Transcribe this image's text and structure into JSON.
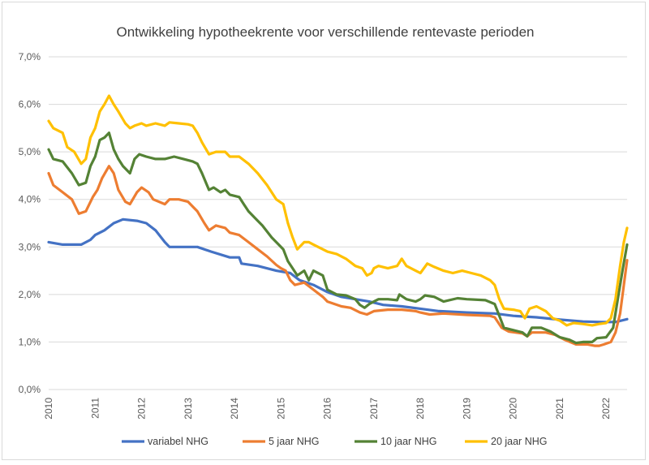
{
  "chart_data": {
    "type": "line",
    "title": "Ontwikkeling hypotheekrente voor verschillende rentevaste perioden",
    "xlabel": "",
    "ylabel": "",
    "x_range": [
      2010,
      2022.45
    ],
    "ylim": [
      0,
      7
    ],
    "y_ticks": [
      "0,0%",
      "1,0%",
      "2,0%",
      "3,0%",
      "4,0%",
      "5,0%",
      "6,0%",
      "7,0%"
    ],
    "y_tick_values": [
      0,
      1,
      2,
      3,
      4,
      5,
      6,
      7
    ],
    "x_ticks": [
      "2010",
      "2011",
      "2012",
      "2013",
      "2014",
      "2015",
      "2016",
      "2017",
      "2018",
      "2019",
      "2020",
      "2021",
      "2022"
    ],
    "x_tick_values": [
      2010,
      2011,
      2012,
      2013,
      2014,
      2015,
      2016,
      2017,
      2018,
      2019,
      2020,
      2021,
      2022
    ],
    "gridlines": "horizontal",
    "legend_position": "bottom",
    "series": [
      {
        "name": "variabel NHG",
        "color": "#4472C4",
        "points": [
          [
            2010.0,
            3.1
          ],
          [
            2010.3,
            3.05
          ],
          [
            2010.7,
            3.05
          ],
          [
            2010.9,
            3.15
          ],
          [
            2011.0,
            3.25
          ],
          [
            2011.2,
            3.35
          ],
          [
            2011.4,
            3.5
          ],
          [
            2011.6,
            3.58
          ],
          [
            2011.9,
            3.55
          ],
          [
            2012.1,
            3.5
          ],
          [
            2012.3,
            3.35
          ],
          [
            2012.5,
            3.1
          ],
          [
            2012.6,
            3.0
          ],
          [
            2012.9,
            3.0
          ],
          [
            2013.2,
            3.0
          ],
          [
            2013.5,
            2.9
          ],
          [
            2013.9,
            2.78
          ],
          [
            2014.1,
            2.78
          ],
          [
            2014.15,
            2.65
          ],
          [
            2014.5,
            2.6
          ],
          [
            2014.9,
            2.5
          ],
          [
            2015.2,
            2.45
          ],
          [
            2015.4,
            2.3
          ],
          [
            2015.7,
            2.2
          ],
          [
            2016.0,
            2.05
          ],
          [
            2016.3,
            1.95
          ],
          [
            2016.6,
            1.9
          ],
          [
            2016.9,
            1.85
          ],
          [
            2017.2,
            1.78
          ],
          [
            2017.6,
            1.75
          ],
          [
            2018.0,
            1.7
          ],
          [
            2018.4,
            1.65
          ],
          [
            2019.0,
            1.62
          ],
          [
            2019.6,
            1.6
          ],
          [
            2020.0,
            1.55
          ],
          [
            2020.5,
            1.52
          ],
          [
            2021.0,
            1.47
          ],
          [
            2021.5,
            1.43
          ],
          [
            2021.9,
            1.42
          ],
          [
            2022.2,
            1.42
          ],
          [
            2022.45,
            1.48
          ]
        ]
      },
      {
        "name": "5 jaar NHG",
        "color": "#ED7D31",
        "points": [
          [
            2010.0,
            4.55
          ],
          [
            2010.1,
            4.3
          ],
          [
            2010.3,
            4.15
          ],
          [
            2010.5,
            4.0
          ],
          [
            2010.65,
            3.7
          ],
          [
            2010.8,
            3.75
          ],
          [
            2010.95,
            4.05
          ],
          [
            2011.05,
            4.2
          ],
          [
            2011.15,
            4.45
          ],
          [
            2011.3,
            4.7
          ],
          [
            2011.4,
            4.55
          ],
          [
            2011.5,
            4.2
          ],
          [
            2011.65,
            3.95
          ],
          [
            2011.75,
            3.9
          ],
          [
            2011.9,
            4.15
          ],
          [
            2012.0,
            4.25
          ],
          [
            2012.15,
            4.15
          ],
          [
            2012.25,
            4.0
          ],
          [
            2012.5,
            3.9
          ],
          [
            2012.6,
            4.0
          ],
          [
            2012.8,
            4.0
          ],
          [
            2013.0,
            3.95
          ],
          [
            2013.1,
            3.85
          ],
          [
            2013.2,
            3.75
          ],
          [
            2013.35,
            3.5
          ],
          [
            2013.45,
            3.35
          ],
          [
            2013.6,
            3.45
          ],
          [
            2013.8,
            3.4
          ],
          [
            2013.9,
            3.3
          ],
          [
            2014.1,
            3.25
          ],
          [
            2014.3,
            3.1
          ],
          [
            2014.5,
            2.95
          ],
          [
            2014.7,
            2.8
          ],
          [
            2014.9,
            2.62
          ],
          [
            2015.0,
            2.55
          ],
          [
            2015.1,
            2.5
          ],
          [
            2015.2,
            2.3
          ],
          [
            2015.3,
            2.2
          ],
          [
            2015.5,
            2.25
          ],
          [
            2015.7,
            2.1
          ],
          [
            2015.9,
            1.95
          ],
          [
            2016.0,
            1.85
          ],
          [
            2016.3,
            1.75
          ],
          [
            2016.5,
            1.72
          ],
          [
            2016.7,
            1.62
          ],
          [
            2016.85,
            1.58
          ],
          [
            2017.0,
            1.65
          ],
          [
            2017.3,
            1.68
          ],
          [
            2017.6,
            1.68
          ],
          [
            2017.9,
            1.65
          ],
          [
            2018.0,
            1.62
          ],
          [
            2018.2,
            1.58
          ],
          [
            2018.5,
            1.6
          ],
          [
            2019.0,
            1.57
          ],
          [
            2019.5,
            1.55
          ],
          [
            2019.6,
            1.52
          ],
          [
            2019.75,
            1.3
          ],
          [
            2019.9,
            1.22
          ],
          [
            2020.2,
            1.18
          ],
          [
            2020.3,
            1.12
          ],
          [
            2020.4,
            1.2
          ],
          [
            2020.7,
            1.2
          ],
          [
            2020.9,
            1.15
          ],
          [
            2021.1,
            1.05
          ],
          [
            2021.35,
            0.95
          ],
          [
            2021.6,
            0.95
          ],
          [
            2021.75,
            0.92
          ],
          [
            2021.85,
            0.92
          ],
          [
            2021.95,
            0.95
          ],
          [
            2022.1,
            1.0
          ],
          [
            2022.2,
            1.2
          ],
          [
            2022.3,
            1.6
          ],
          [
            2022.38,
            2.2
          ],
          [
            2022.45,
            2.72
          ]
        ]
      },
      {
        "name": "10 jaar NHG",
        "color": "#548235",
        "points": [
          [
            2010.0,
            5.05
          ],
          [
            2010.1,
            4.85
          ],
          [
            2010.3,
            4.8
          ],
          [
            2010.5,
            4.55
          ],
          [
            2010.65,
            4.3
          ],
          [
            2010.8,
            4.35
          ],
          [
            2010.9,
            4.7
          ],
          [
            2011.0,
            4.9
          ],
          [
            2011.1,
            5.25
          ],
          [
            2011.2,
            5.3
          ],
          [
            2011.3,
            5.4
          ],
          [
            2011.4,
            5.05
          ],
          [
            2011.5,
            4.85
          ],
          [
            2011.6,
            4.7
          ],
          [
            2011.75,
            4.55
          ],
          [
            2011.85,
            4.85
          ],
          [
            2011.95,
            4.95
          ],
          [
            2012.1,
            4.9
          ],
          [
            2012.3,
            4.85
          ],
          [
            2012.5,
            4.85
          ],
          [
            2012.7,
            4.9
          ],
          [
            2012.9,
            4.85
          ],
          [
            2013.1,
            4.8
          ],
          [
            2013.2,
            4.75
          ],
          [
            2013.3,
            4.55
          ],
          [
            2013.45,
            4.2
          ],
          [
            2013.55,
            4.25
          ],
          [
            2013.7,
            4.15
          ],
          [
            2013.8,
            4.2
          ],
          [
            2013.9,
            4.1
          ],
          [
            2014.1,
            4.05
          ],
          [
            2014.2,
            3.9
          ],
          [
            2014.3,
            3.75
          ],
          [
            2014.45,
            3.6
          ],
          [
            2014.6,
            3.45
          ],
          [
            2014.8,
            3.2
          ],
          [
            2014.95,
            3.05
          ],
          [
            2015.05,
            2.95
          ],
          [
            2015.15,
            2.7
          ],
          [
            2015.25,
            2.55
          ],
          [
            2015.35,
            2.4
          ],
          [
            2015.5,
            2.5
          ],
          [
            2015.6,
            2.3
          ],
          [
            2015.7,
            2.5
          ],
          [
            2015.9,
            2.4
          ],
          [
            2016.0,
            2.1
          ],
          [
            2016.2,
            2.0
          ],
          [
            2016.4,
            1.98
          ],
          [
            2016.6,
            1.9
          ],
          [
            2016.7,
            1.78
          ],
          [
            2016.8,
            1.72
          ],
          [
            2016.9,
            1.8
          ],
          [
            2017.0,
            1.85
          ],
          [
            2017.1,
            1.9
          ],
          [
            2017.3,
            1.9
          ],
          [
            2017.5,
            1.88
          ],
          [
            2017.55,
            2.0
          ],
          [
            2017.7,
            1.9
          ],
          [
            2017.9,
            1.85
          ],
          [
            2018.0,
            1.9
          ],
          [
            2018.1,
            1.98
          ],
          [
            2018.3,
            1.95
          ],
          [
            2018.5,
            1.85
          ],
          [
            2018.8,
            1.92
          ],
          [
            2019.0,
            1.9
          ],
          [
            2019.4,
            1.88
          ],
          [
            2019.6,
            1.8
          ],
          [
            2019.7,
            1.55
          ],
          [
            2019.8,
            1.3
          ],
          [
            2020.0,
            1.25
          ],
          [
            2020.2,
            1.2
          ],
          [
            2020.3,
            1.12
          ],
          [
            2020.4,
            1.3
          ],
          [
            2020.6,
            1.3
          ],
          [
            2020.8,
            1.22
          ],
          [
            2021.0,
            1.1
          ],
          [
            2021.2,
            1.05
          ],
          [
            2021.35,
            0.98
          ],
          [
            2021.5,
            1.0
          ],
          [
            2021.7,
            1.0
          ],
          [
            2021.8,
            1.08
          ],
          [
            2022.0,
            1.1
          ],
          [
            2022.15,
            1.3
          ],
          [
            2022.25,
            1.9
          ],
          [
            2022.35,
            2.5
          ],
          [
            2022.45,
            3.05
          ]
        ]
      },
      {
        "name": "20 jaar NHG",
        "color": "#FFC000",
        "points": [
          [
            2010.0,
            5.65
          ],
          [
            2010.1,
            5.5
          ],
          [
            2010.3,
            5.4
          ],
          [
            2010.4,
            5.1
          ],
          [
            2010.55,
            5.0
          ],
          [
            2010.7,
            4.75
          ],
          [
            2010.8,
            4.85
          ],
          [
            2010.9,
            5.3
          ],
          [
            2011.0,
            5.5
          ],
          [
            2011.1,
            5.85
          ],
          [
            2011.2,
            6.0
          ],
          [
            2011.3,
            6.18
          ],
          [
            2011.4,
            6.0
          ],
          [
            2011.5,
            5.85
          ],
          [
            2011.65,
            5.6
          ],
          [
            2011.75,
            5.5
          ],
          [
            2011.85,
            5.55
          ],
          [
            2012.0,
            5.6
          ],
          [
            2012.1,
            5.55
          ],
          [
            2012.3,
            5.6
          ],
          [
            2012.5,
            5.55
          ],
          [
            2012.6,
            5.62
          ],
          [
            2012.8,
            5.6
          ],
          [
            2013.0,
            5.58
          ],
          [
            2013.1,
            5.55
          ],
          [
            2013.2,
            5.4
          ],
          [
            2013.3,
            5.2
          ],
          [
            2013.45,
            4.95
          ],
          [
            2013.6,
            5.0
          ],
          [
            2013.8,
            5.0
          ],
          [
            2013.9,
            4.9
          ],
          [
            2014.1,
            4.9
          ],
          [
            2014.3,
            4.75
          ],
          [
            2014.5,
            4.55
          ],
          [
            2014.7,
            4.3
          ],
          [
            2014.9,
            4.0
          ],
          [
            2015.05,
            3.9
          ],
          [
            2015.15,
            3.5
          ],
          [
            2015.25,
            3.2
          ],
          [
            2015.35,
            2.95
          ],
          [
            2015.5,
            3.1
          ],
          [
            2015.6,
            3.1
          ],
          [
            2015.7,
            3.05
          ],
          [
            2015.9,
            2.95
          ],
          [
            2016.0,
            2.9
          ],
          [
            2016.2,
            2.85
          ],
          [
            2016.4,
            2.75
          ],
          [
            2016.6,
            2.6
          ],
          [
            2016.75,
            2.55
          ],
          [
            2016.85,
            2.4
          ],
          [
            2016.95,
            2.45
          ],
          [
            2017.0,
            2.55
          ],
          [
            2017.1,
            2.6
          ],
          [
            2017.3,
            2.55
          ],
          [
            2017.5,
            2.6
          ],
          [
            2017.6,
            2.75
          ],
          [
            2017.7,
            2.6
          ],
          [
            2017.9,
            2.5
          ],
          [
            2018.0,
            2.45
          ],
          [
            2018.15,
            2.65
          ],
          [
            2018.3,
            2.58
          ],
          [
            2018.5,
            2.5
          ],
          [
            2018.7,
            2.45
          ],
          [
            2018.9,
            2.5
          ],
          [
            2019.1,
            2.45
          ],
          [
            2019.3,
            2.4
          ],
          [
            2019.5,
            2.3
          ],
          [
            2019.6,
            2.2
          ],
          [
            2019.7,
            1.9
          ],
          [
            2019.8,
            1.7
          ],
          [
            2020.0,
            1.68
          ],
          [
            2020.15,
            1.65
          ],
          [
            2020.25,
            1.5
          ],
          [
            2020.35,
            1.7
          ],
          [
            2020.5,
            1.75
          ],
          [
            2020.7,
            1.65
          ],
          [
            2020.85,
            1.5
          ],
          [
            2021.0,
            1.45
          ],
          [
            2021.15,
            1.35
          ],
          [
            2021.3,
            1.4
          ],
          [
            2021.5,
            1.38
          ],
          [
            2021.7,
            1.35
          ],
          [
            2021.85,
            1.38
          ],
          [
            2022.0,
            1.4
          ],
          [
            2022.1,
            1.5
          ],
          [
            2022.2,
            1.9
          ],
          [
            2022.3,
            2.6
          ],
          [
            2022.38,
            3.1
          ],
          [
            2022.45,
            3.4
          ]
        ]
      }
    ]
  }
}
